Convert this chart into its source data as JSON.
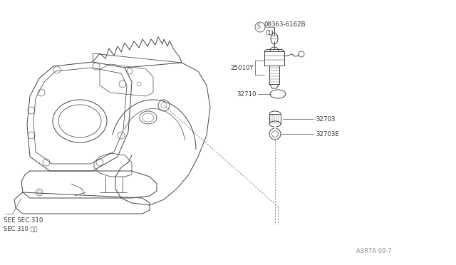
{
  "bg_color": "#ffffff",
  "line_color": "#444444",
  "fig_width": 6.4,
  "fig_height": 3.72,
  "dpi": 100,
  "label_08363": "08363-6162B",
  "label_1": "(1)",
  "label_25010Y": "25010Y",
  "label_32710": "32710",
  "label_32703": "32703",
  "label_32703E": "32703E",
  "label_see": "SEE SEC.310",
  "label_sec": "SEC.310 参照",
  "label_partno": "A3R7A 00-7"
}
